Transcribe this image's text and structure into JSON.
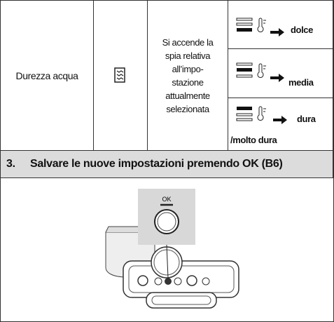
{
  "setting": {
    "name": "Durezza acqua",
    "description": [
      "Si accende la",
      "spia relativa",
      "all’impo-",
      "stazione",
      "attualmente",
      "selezionata"
    ],
    "levels": [
      "dolce",
      "media",
      "dura",
      "/molto dura"
    ]
  },
  "step": {
    "number": "3.",
    "text": "Salvare le nuove impostazioni premendo OK (B6)"
  },
  "figure": {
    "button_label": "OK"
  }
}
